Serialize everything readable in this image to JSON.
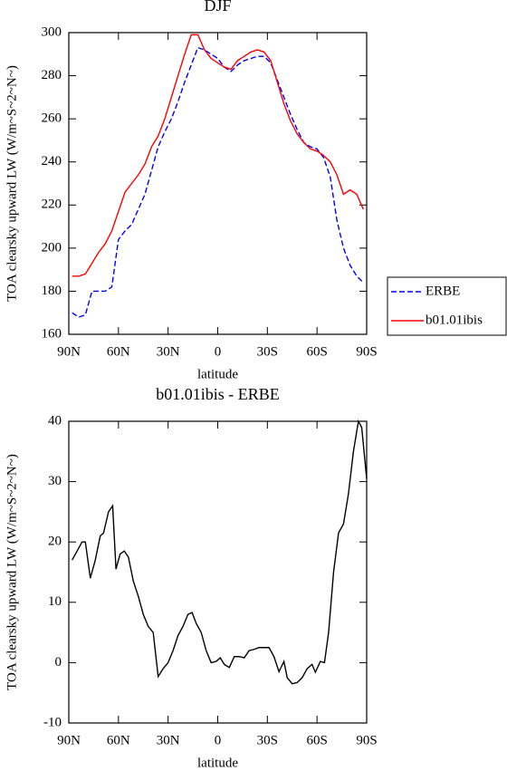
{
  "chart_data": [
    {
      "type": "line",
      "title": "DJF",
      "xlabel": "latitude",
      "ylabel": "TOA clearsky upward LW (W/m~S~2~N~)",
      "xlim": [
        90,
        -90
      ],
      "xticks": [
        {
          "value": 90,
          "label": "90N"
        },
        {
          "value": 60,
          "label": "60N"
        },
        {
          "value": 30,
          "label": "30N"
        },
        0,
        {
          "value": -30,
          "label": "30S"
        },
        {
          "value": -60,
          "label": "60S"
        },
        {
          "value": -90,
          "label": "90S"
        }
      ],
      "ylim": [
        160,
        300
      ],
      "yticks": [
        160,
        180,
        200,
        220,
        240,
        260,
        280,
        300
      ],
      "legend": "right",
      "x": [
        88,
        84,
        80,
        76,
        72,
        68,
        64,
        60,
        56,
        52,
        48,
        44,
        40,
        36,
        32,
        28,
        24,
        20,
        16,
        12,
        8,
        4,
        0,
        -4,
        -8,
        -12,
        -16,
        -20,
        -24,
        -28,
        -32,
        -36,
        -40,
        -44,
        -48,
        -52,
        -56,
        -60,
        -64,
        -68,
        -72,
        -76,
        -80,
        -84,
        -88
      ],
      "series": [
        {
          "name": "ERBE",
          "color": "#0000ff",
          "dash": true,
          "values": [
            170,
            168,
            169,
            180,
            180,
            180,
            182,
            204,
            208,
            211,
            218,
            225,
            236,
            247,
            254,
            260,
            268,
            277,
            285,
            293,
            292,
            290,
            288,
            284,
            282,
            285,
            287,
            288,
            289,
            289,
            286,
            278,
            270,
            262,
            255,
            249,
            247,
            246,
            242,
            233,
            213,
            200,
            192,
            187,
            184
          ]
        },
        {
          "name": "b01.01ibis",
          "color": "#ff0000",
          "dash": false,
          "values": [
            187,
            187,
            188,
            193,
            198,
            202,
            208,
            217,
            226,
            230,
            234,
            239,
            247,
            252,
            260,
            270,
            280,
            290,
            299,
            299,
            292,
            288,
            286,
            284,
            283,
            287,
            289,
            291,
            292,
            291,
            287,
            277,
            267,
            259,
            253,
            249,
            246,
            245,
            243,
            240,
            234,
            225,
            227,
            225,
            218
          ]
        }
      ]
    },
    {
      "type": "line",
      "title": "b01.01ibis - ERBE",
      "xlabel": "latitude",
      "ylabel": "TOA clearsky upward LW (W/m~S~2~N~)",
      "xlim": [
        90,
        -90
      ],
      "xticks": [
        {
          "value": 90,
          "label": "90N"
        },
        {
          "value": 60,
          "label": "60N"
        },
        {
          "value": 30,
          "label": "30N"
        },
        0,
        {
          "value": -30,
          "label": "30S"
        },
        {
          "value": -60,
          "label": "60S"
        },
        {
          "value": -90,
          "label": "90S"
        }
      ],
      "ylim": [
        -10,
        40
      ],
      "yticks": [
        -10,
        0,
        10,
        20,
        30,
        40
      ],
      "x": [
        88,
        85,
        82,
        80,
        77,
        74,
        71,
        69,
        66,
        63.5,
        61.5,
        59,
        56.5,
        54,
        51,
        48,
        45,
        42,
        39,
        36,
        33,
        30,
        27,
        24,
        21,
        18,
        15.5,
        13,
        10,
        7,
        4,
        1,
        -1.5,
        -4,
        -7,
        -10,
        -13,
        -16,
        -19,
        -22,
        -25,
        -28,
        -31,
        -34,
        -37,
        -40,
        -42,
        -45,
        -48,
        -51,
        -54,
        -57,
        -59,
        -62,
        -64.5,
        -67,
        -70,
        -73,
        -76,
        -79,
        -82,
        -85,
        -87,
        -90
      ],
      "color": "#000000",
      "values": [
        17,
        18.5,
        20,
        20,
        14,
        17,
        21,
        21.5,
        25,
        26,
        15.5,
        18,
        18.5,
        17.5,
        13.5,
        11,
        8,
        6,
        5,
        -2.3,
        -1,
        0,
        2,
        4.5,
        6,
        8,
        8.3,
        6.5,
        5,
        2,
        0,
        0.2,
        0.8,
        -0.3,
        -0.8,
        1,
        1,
        0.8,
        2,
        2.2,
        2.5,
        2.5,
        2.5,
        1,
        -1.5,
        0.2,
        -2.5,
        -3.5,
        -3.3,
        -2.5,
        -1,
        -0.3,
        -1.6,
        0.2,
        0,
        5,
        15,
        21.5,
        23,
        28,
        35,
        40,
        39,
        30.5
      ]
    }
  ]
}
